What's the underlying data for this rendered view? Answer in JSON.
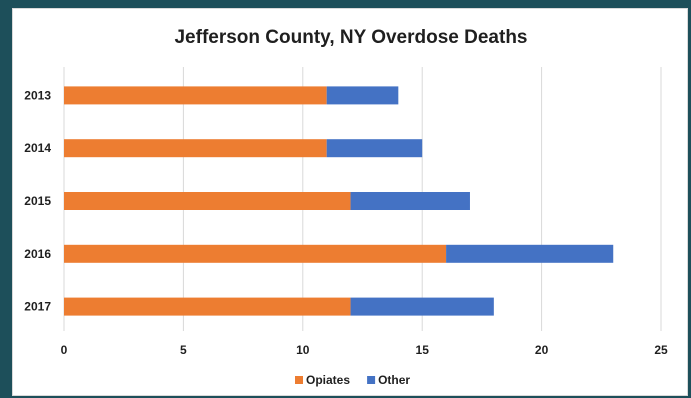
{
  "chart_data": {
    "type": "bar",
    "orientation": "horizontal",
    "stacked": true,
    "title": "Jefferson County, NY Overdose Deaths",
    "categories": [
      "2013",
      "2014",
      "2015",
      "2016",
      "2017"
    ],
    "series": [
      {
        "name": "Opiates",
        "color": "#ED7D31",
        "values": [
          11,
          11,
          12,
          16,
          12
        ]
      },
      {
        "name": "Other",
        "color": "#4472C4",
        "values": [
          3,
          4,
          5,
          7,
          6
        ]
      }
    ],
    "xlim": [
      0,
      25
    ],
    "xticks": [
      "0",
      "5",
      "10",
      "15",
      "20",
      "25"
    ],
    "grid": true,
    "legend": "bottom"
  }
}
